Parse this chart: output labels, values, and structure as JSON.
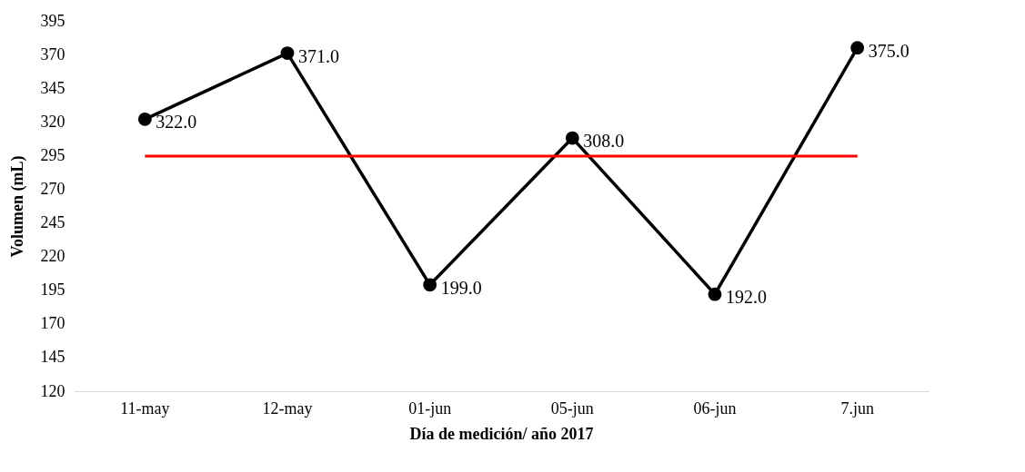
{
  "chart_data": {
    "type": "line",
    "xlabel": "Día de medición/ año 2017",
    "ylabel": "Volumen (mL)",
    "categories": [
      "11-may",
      "12-may",
      "01-jun",
      "05-jun",
      "06-jun",
      "7.jun"
    ],
    "series": [
      {
        "color": "#000000",
        "values": [
          322,
          371,
          199,
          308,
          192,
          375
        ],
        "value_labels": [
          "322.0",
          "371.0",
          "199.0",
          "308.0",
          "192.0",
          "375.0"
        ]
      }
    ],
    "ylim": [
      120,
      395
    ],
    "yticks": [
      120,
      145,
      170,
      195,
      220,
      245,
      270,
      295,
      320,
      345,
      370,
      395
    ],
    "ref_lines": [
      {
        "axis": "y",
        "value": 294.5,
        "color": "#ff0000"
      }
    ],
    "marker": "circle",
    "line_style": "solid",
    "grid": false
  }
}
